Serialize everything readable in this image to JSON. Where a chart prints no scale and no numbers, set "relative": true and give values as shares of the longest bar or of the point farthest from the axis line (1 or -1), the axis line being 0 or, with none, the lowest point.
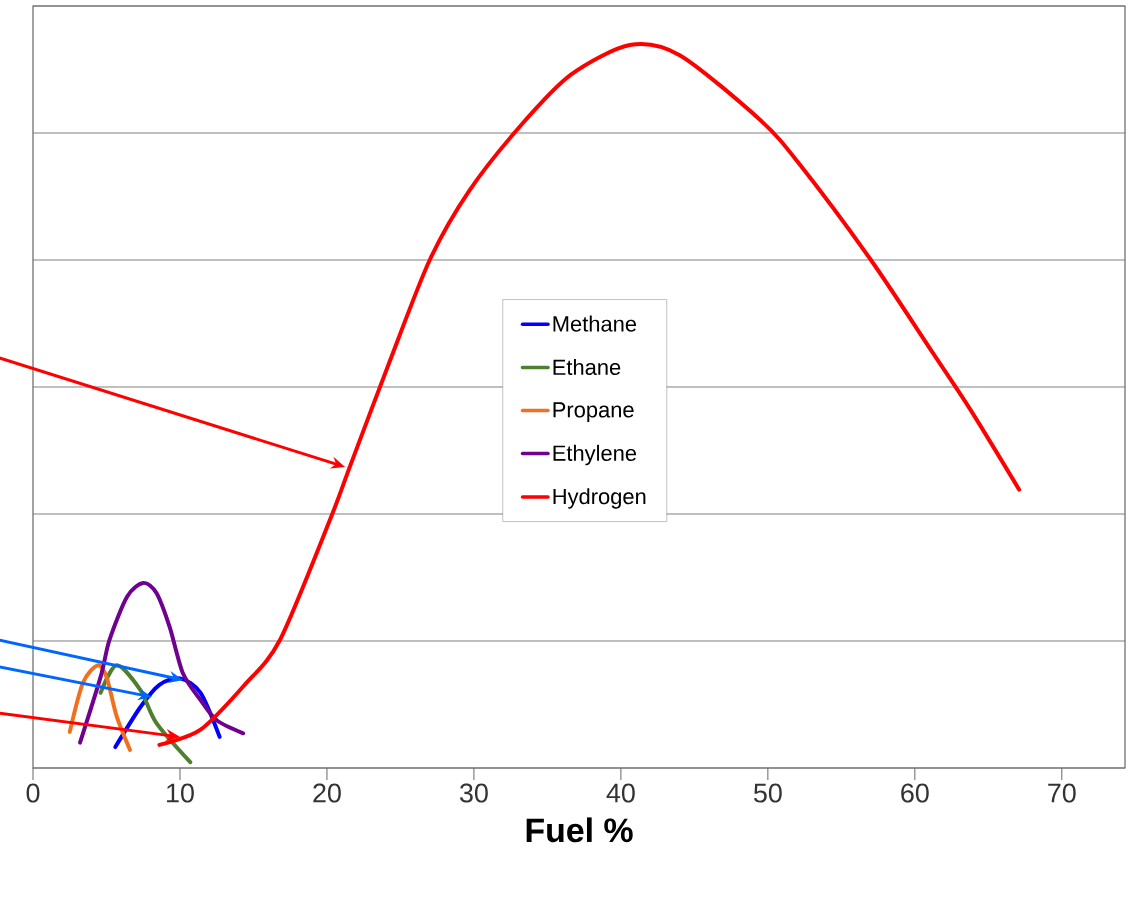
{
  "chart_data": {
    "type": "line",
    "relative": true,
    "xlabel": "Fuel %",
    "xlim": [
      0,
      74.3
    ],
    "xticks": [
      0,
      10,
      20,
      30,
      40,
      50,
      60,
      70
    ],
    "grid": "y",
    "legend": "right",
    "line_style": "solid",
    "marker": "none",
    "series": [
      {
        "name": "Methane",
        "color": "#0000ff",
        "x": [
          5.6,
          7.3,
          8.6,
          10.0,
          11.4,
          12.7
        ],
        "values": [
          0.029,
          0.084,
          0.115,
          0.124,
          0.104,
          0.043
        ]
      },
      {
        "name": "Ethane",
        "color": "#4f7f2f",
        "x": [
          4.6,
          5.7,
          7.3,
          8.4,
          10.7
        ],
        "values": [
          0.104,
          0.142,
          0.108,
          0.062,
          0.008
        ]
      },
      {
        "name": "Propane",
        "color": "#f07020",
        "x": [
          2.5,
          3.4,
          4.4,
          5.0,
          5.7,
          6.6
        ],
        "values": [
          0.05,
          0.118,
          0.142,
          0.126,
          0.071,
          0.025
        ]
      },
      {
        "name": "Ethylene",
        "color": "#700090",
        "x": [
          3.2,
          4.6,
          5.2,
          6.4,
          7.5,
          8.4,
          9.3,
          10.2,
          11.4,
          12.5,
          14.3
        ],
        "values": [
          0.035,
          0.126,
          0.177,
          0.237,
          0.256,
          0.242,
          0.195,
          0.131,
          0.094,
          0.066,
          0.048
        ]
      },
      {
        "name": "Hydrogen",
        "color": "#ff0000",
        "x": [
          8.6,
          11.4,
          14.4,
          16.8,
          20.2,
          21.6,
          24.3,
          27.0,
          29.7,
          33.2,
          36.6,
          40.6,
          44.0,
          49.5,
          52.2,
          57.0,
          61.1,
          63.8,
          67.1
        ],
        "values": [
          0.032,
          0.053,
          0.115,
          0.177,
          0.343,
          0.419,
          0.564,
          0.703,
          0.799,
          0.889,
          0.959,
          1,
          0.986,
          0.896,
          0.834,
          0.703,
          0.578,
          0.495,
          0.385
        ]
      }
    ]
  }
}
